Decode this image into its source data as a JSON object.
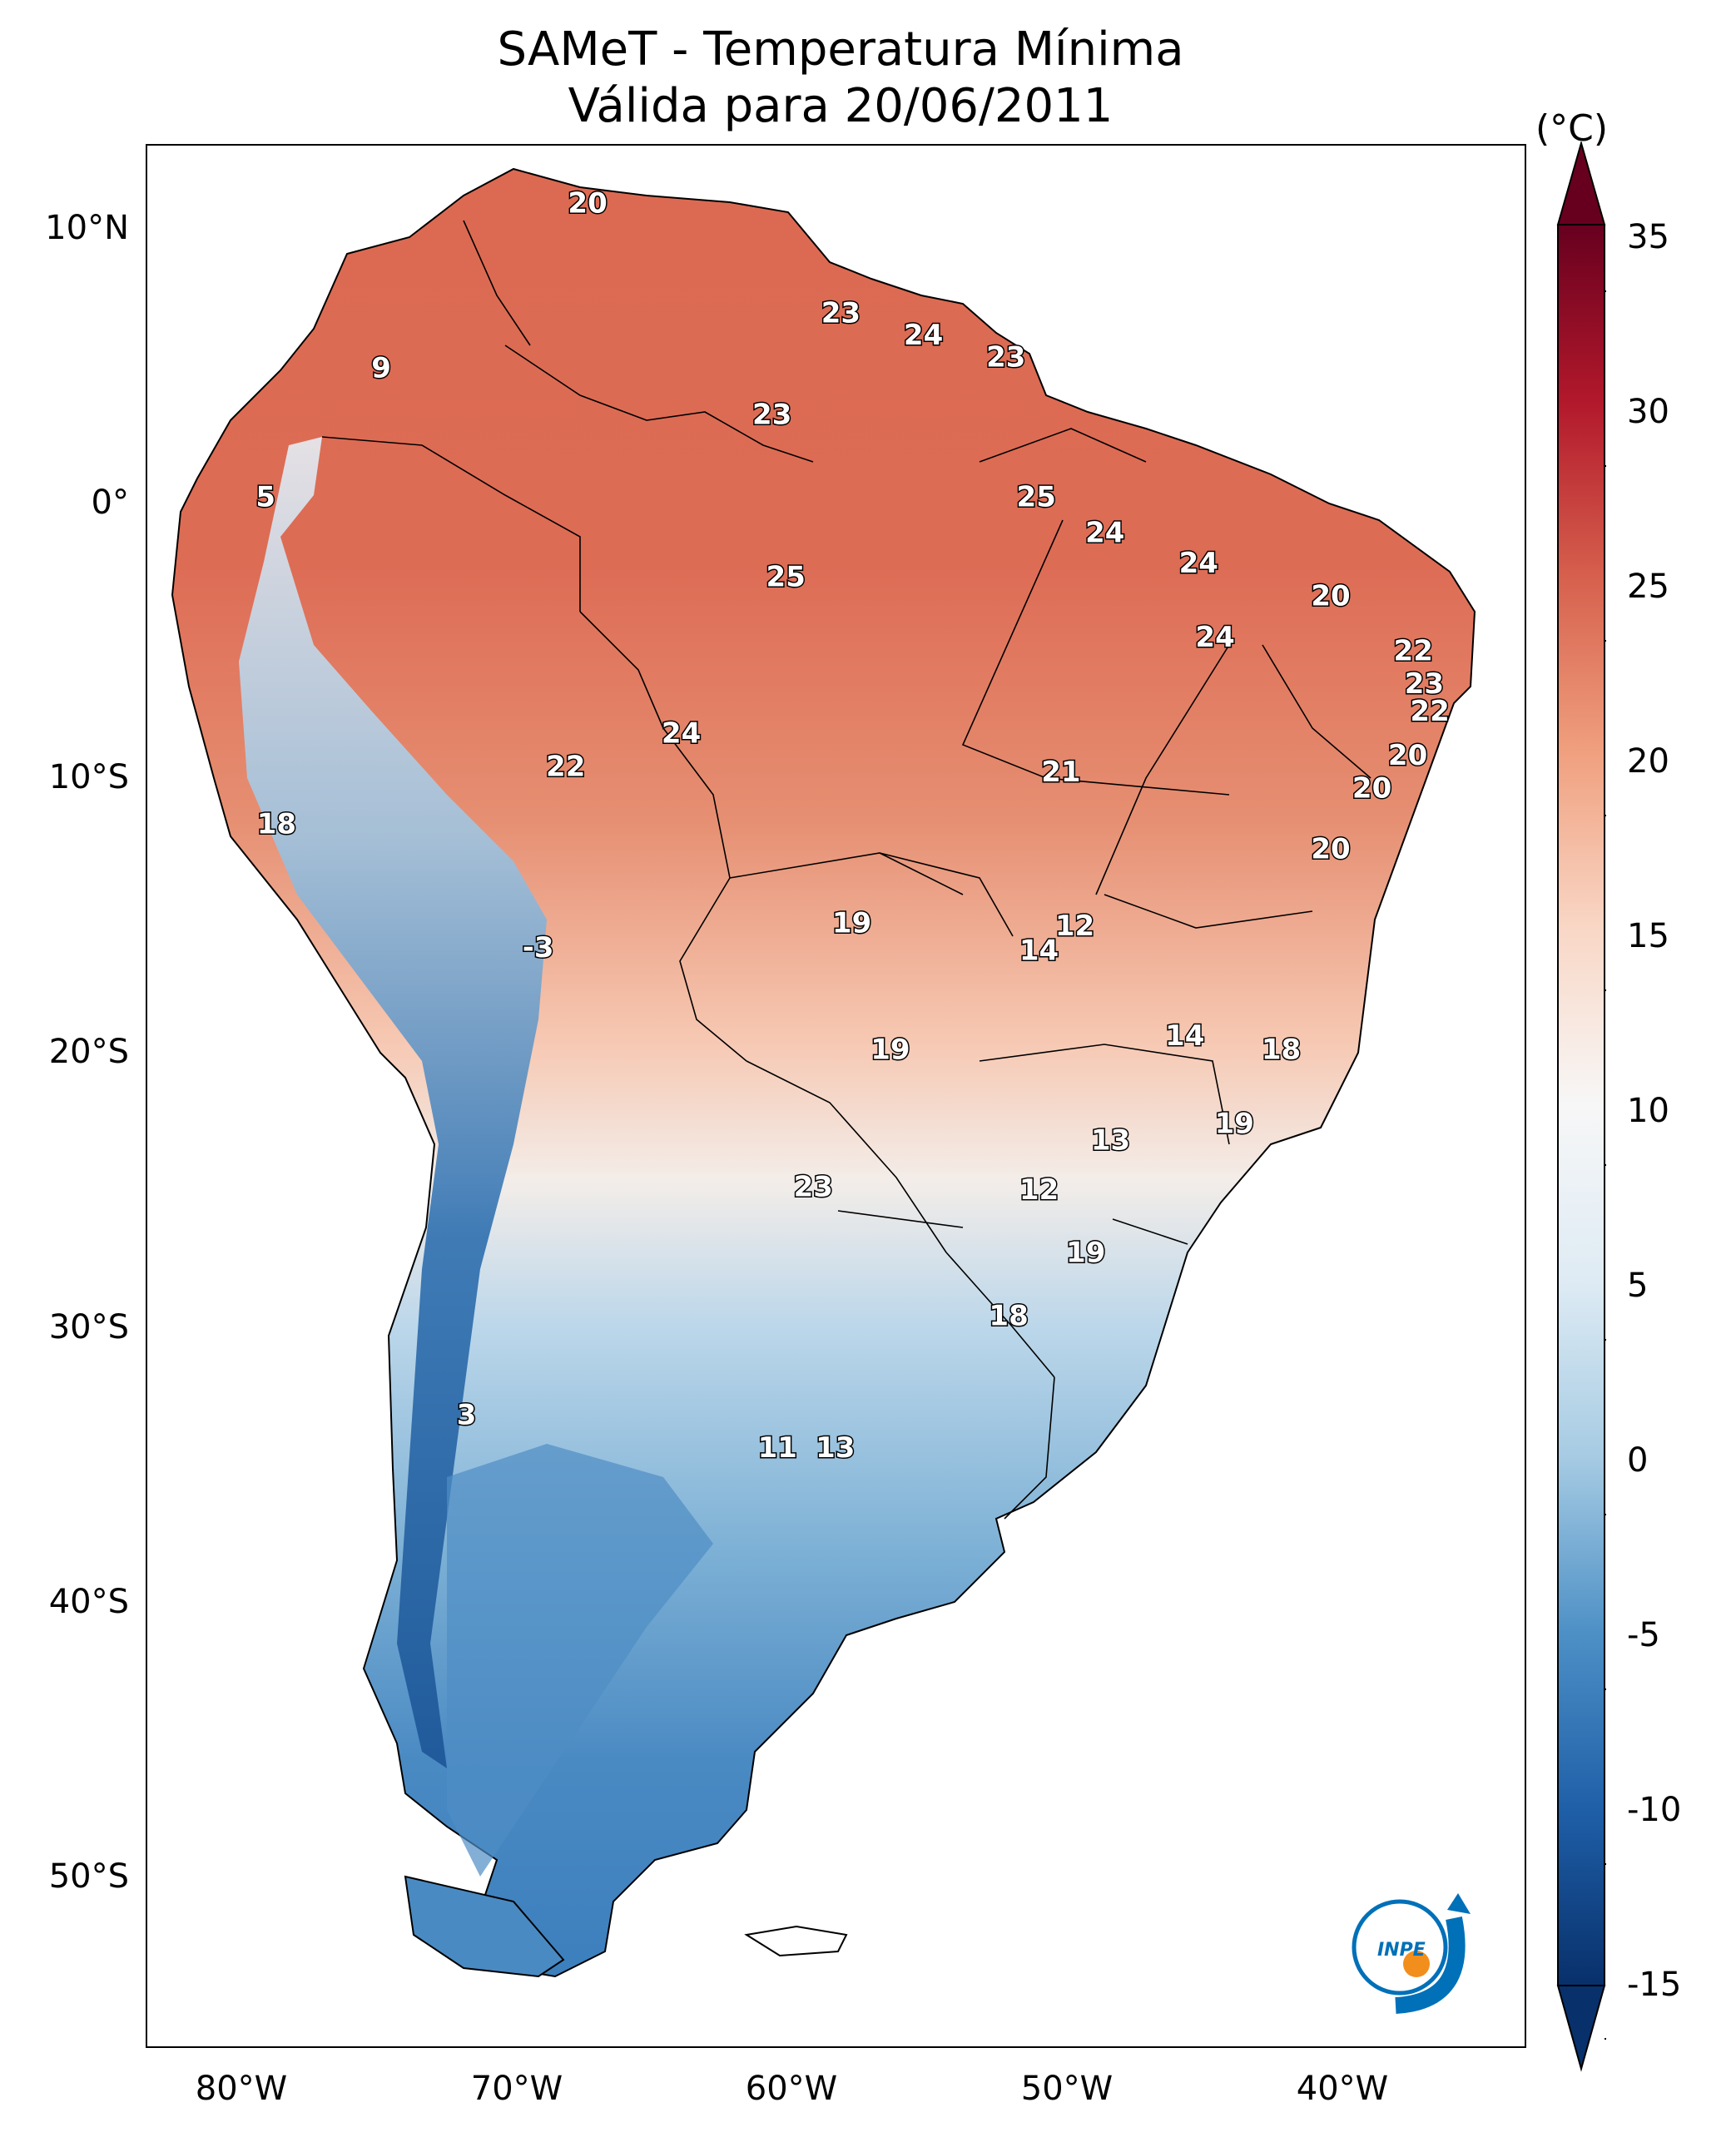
{
  "title": {
    "line1": "SAMeT - Temperatura Mínima",
    "line2": "Válida para 20/06/2011"
  },
  "lat_labels": [
    "10°N",
    "0°",
    "10°S",
    "20°S",
    "30°S",
    "40°S",
    "50°S"
  ],
  "lon_labels": [
    "80°W",
    "70°W",
    "60°W",
    "50°W",
    "40°W"
  ],
  "colorbar": {
    "unit": "(°C)",
    "ticks": [
      "35",
      "30",
      "25",
      "20",
      "15",
      "10",
      "5",
      "0",
      "-5",
      "-10",
      "-15"
    ],
    "range": [
      -15,
      35
    ],
    "colors": {
      "-15": "#08306b",
      "-10": "#1f5fa8",
      "-5": "#4d90c6",
      "0": "#a6cbe3",
      "5": "#deebf4",
      "10": "#f7f7f7",
      "15": "#f9d7c6",
      "20": "#f0a07f",
      "25": "#d6604d",
      "30": "#b2182b",
      "35": "#67001f"
    },
    "extend": "both"
  },
  "logo": {
    "text": "INPE",
    "colors": {
      "arc": "#0070b8",
      "dot": "#f28e1c"
    }
  },
  "value_labels": [
    {
      "text": "20",
      "lon": -67.0,
      "lat": 10.5
    },
    {
      "text": "9",
      "lon": -74.5,
      "lat": 4.5
    },
    {
      "text": "23",
      "lon": -57.8,
      "lat": 6.5
    },
    {
      "text": "24",
      "lon": -54.8,
      "lat": 5.7
    },
    {
      "text": "23",
      "lon": -51.8,
      "lat": 4.9
    },
    {
      "text": "23",
      "lon": -60.3,
      "lat": 2.8
    },
    {
      "text": "5",
      "lon": -78.7,
      "lat": -0.2
    },
    {
      "text": "25",
      "lon": -50.7,
      "lat": -0.2
    },
    {
      "text": "24",
      "lon": -48.2,
      "lat": -1.5
    },
    {
      "text": "24",
      "lon": -44.8,
      "lat": -2.6
    },
    {
      "text": "25",
      "lon": -59.8,
      "lat": -3.1
    },
    {
      "text": "20",
      "lon": -40.0,
      "lat": -3.8
    },
    {
      "text": "24",
      "lon": -44.2,
      "lat": -5.3
    },
    {
      "text": "22",
      "lon": -37.0,
      "lat": -5.8
    },
    {
      "text": "23",
      "lon": -36.6,
      "lat": -7.0
    },
    {
      "text": "22",
      "lon": -36.4,
      "lat": -8.0
    },
    {
      "text": "24",
      "lon": -63.6,
      "lat": -8.8
    },
    {
      "text": "22",
      "lon": -67.8,
      "lat": -10.0
    },
    {
      "text": "20",
      "lon": -37.2,
      "lat": -9.6
    },
    {
      "text": "21",
      "lon": -49.8,
      "lat": -10.2
    },
    {
      "text": "20",
      "lon": -38.5,
      "lat": -10.8
    },
    {
      "text": "18",
      "lon": -78.3,
      "lat": -12.1
    },
    {
      "text": "20",
      "lon": -40.0,
      "lat": -13.0
    },
    {
      "text": "19",
      "lon": -57.4,
      "lat": -15.7
    },
    {
      "text": "12",
      "lon": -49.3,
      "lat": -15.8
    },
    {
      "text": "-3",
      "lon": -68.8,
      "lat": -16.6
    },
    {
      "text": "14",
      "lon": -50.6,
      "lat": -16.7
    },
    {
      "text": "14",
      "lon": -45.3,
      "lat": -19.8
    },
    {
      "text": "19",
      "lon": -56.0,
      "lat": -20.3
    },
    {
      "text": "18",
      "lon": -41.8,
      "lat": -20.3
    },
    {
      "text": "19",
      "lon": -43.5,
      "lat": -23.0
    },
    {
      "text": "13",
      "lon": -48.0,
      "lat": -23.6
    },
    {
      "text": "23",
      "lon": -58.8,
      "lat": -25.3
    },
    {
      "text": "12",
      "lon": -50.6,
      "lat": -25.4
    },
    {
      "text": "19",
      "lon": -48.9,
      "lat": -27.7
    },
    {
      "text": "18",
      "lon": -51.7,
      "lat": -30.0
    },
    {
      "text": "3",
      "lon": -71.4,
      "lat": -33.6
    },
    {
      "text": "11",
      "lon": -60.1,
      "lat": -34.8
    },
    {
      "text": "13",
      "lon": -58.0,
      "lat": -34.8
    }
  ]
}
